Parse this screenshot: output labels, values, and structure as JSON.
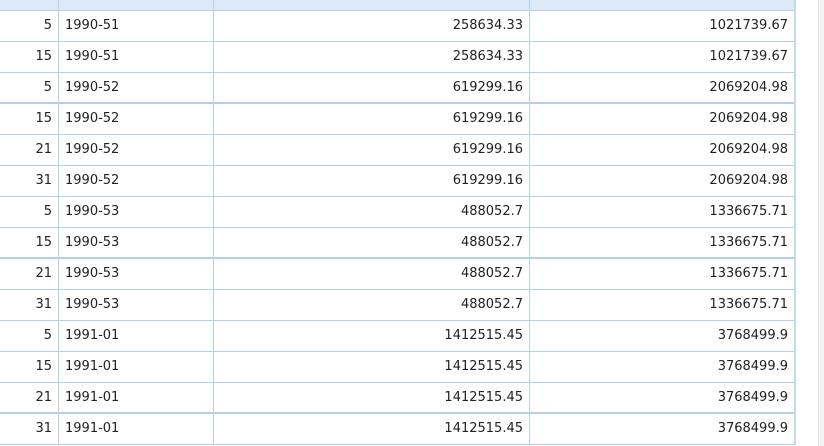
{
  "table": {
    "rows": [
      [
        "5",
        "1990-51",
        "258634.33",
        "1021739.67"
      ],
      [
        "15",
        "1990-51",
        "258634.33",
        "1021739.67"
      ],
      [
        "5",
        "1990-52",
        "619299.16",
        "2069204.98"
      ],
      [
        "15",
        "1990-52",
        "619299.16",
        "2069204.98"
      ],
      [
        "21",
        "1990-52",
        "619299.16",
        "2069204.98"
      ],
      [
        "31",
        "1990-52",
        "619299.16",
        "2069204.98"
      ],
      [
        "5",
        "1990-53",
        "488052.7",
        "1336675.71"
      ],
      [
        "15",
        "1990-53",
        "488052.7",
        "1336675.71"
      ],
      [
        "21",
        "1990-53",
        "488052.7",
        "1336675.71"
      ],
      [
        "31",
        "1990-53",
        "488052.7",
        "1336675.71"
      ],
      [
        "5",
        "1991-01",
        "1412515.45",
        "3768499.9"
      ],
      [
        "15",
        "1991-01",
        "1412515.45",
        "3768499.9"
      ],
      [
        "21",
        "1991-01",
        "1412515.45",
        "3768499.9"
      ],
      [
        "31",
        "1991-01",
        "1412515.45",
        "3768499.9"
      ]
    ]
  }
}
